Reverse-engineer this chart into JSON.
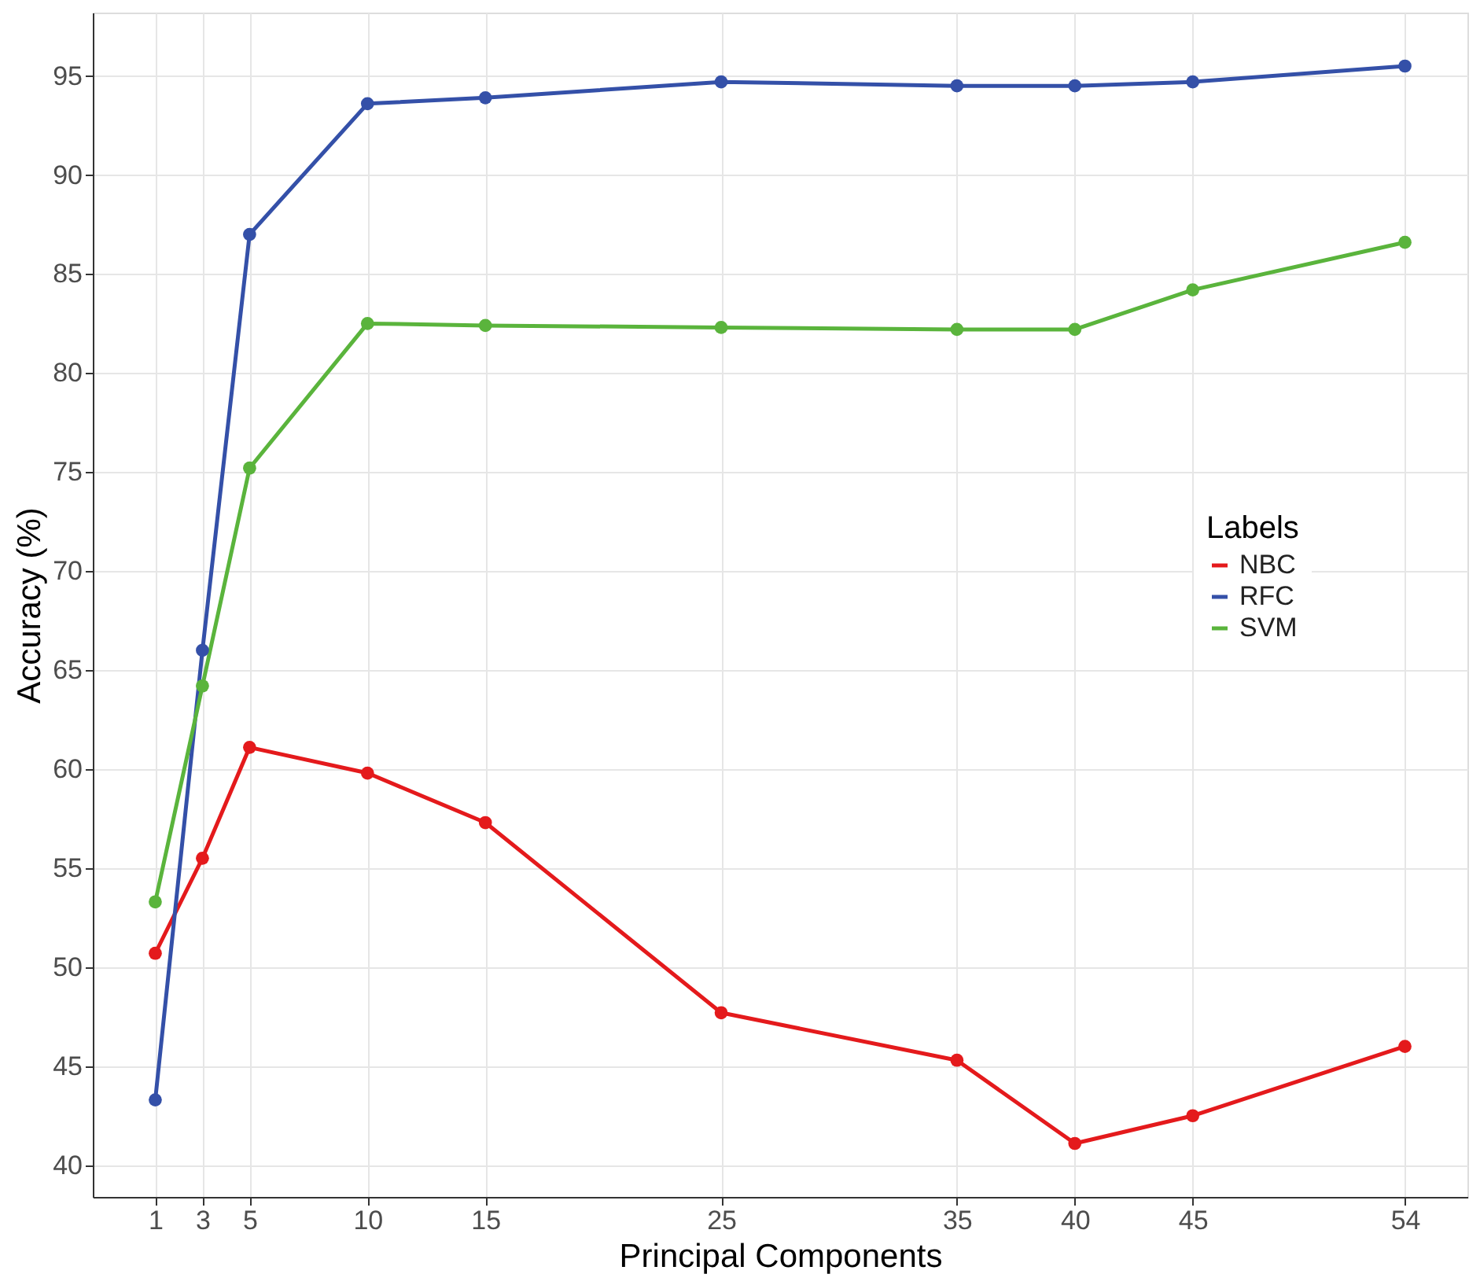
{
  "chart_data": {
    "type": "line",
    "xlabel": "Principal Components",
    "ylabel": "Accuracy (%)",
    "legend_title": "Labels",
    "x": [
      1,
      3,
      5,
      10,
      15,
      25,
      35,
      40,
      45,
      54
    ],
    "series": [
      {
        "name": "NBC",
        "color": "#e41a1c",
        "values": [
          50.7,
          55.5,
          61.1,
          59.8,
          57.3,
          47.7,
          45.3,
          41.1,
          42.5,
          46.0
        ]
      },
      {
        "name": "RFC",
        "color": "#3450a8",
        "values": [
          43.3,
          66.0,
          87.0,
          93.6,
          93.9,
          94.7,
          94.5,
          94.5,
          94.7,
          95.5
        ]
      },
      {
        "name": "SVM",
        "color": "#5ab43c",
        "values": [
          53.3,
          64.2,
          75.2,
          82.5,
          82.4,
          82.3,
          82.2,
          82.2,
          84.2,
          86.6
        ]
      }
    ],
    "xlim": [
      -1.65,
      56.65
    ],
    "ylim": [
      38.4,
      98.2
    ],
    "xticks": [
      1,
      3,
      5,
      10,
      15,
      25,
      35,
      40,
      45,
      54
    ],
    "yticks": [
      40,
      45,
      50,
      55,
      60,
      65,
      70,
      75,
      80,
      85,
      90,
      95
    ],
    "grid": true,
    "legend": "right",
    "marker": "circle",
    "line_style": "solid"
  }
}
